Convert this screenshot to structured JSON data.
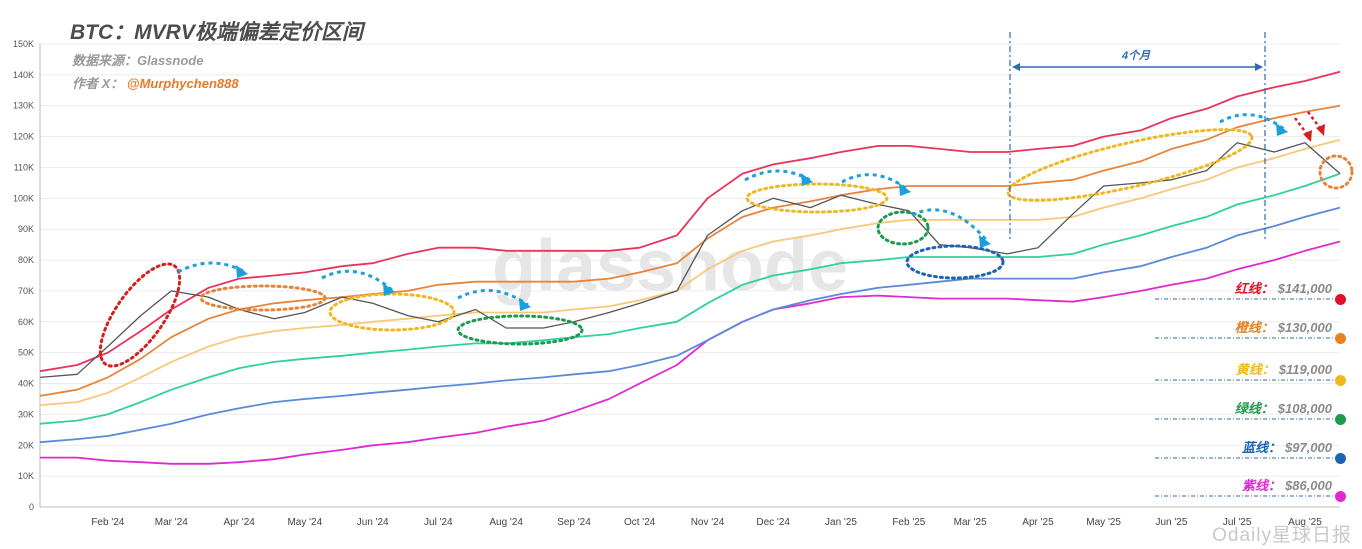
{
  "header": {
    "title": "BTC：MVRV极端偏差定价区间",
    "source": "数据来源：Glassnode",
    "author_label": "作者 X：",
    "author_handle": "@Murphychen888"
  },
  "watermark": "glassnode",
  "corner_watermark": "Odaily星球日报",
  "annotation_span": "4个月",
  "levels": [
    {
      "name": "红线：",
      "value": "$141,000",
      "color": "#e0102a"
    },
    {
      "name": "橙线：",
      "value": "$130,000",
      "color": "#e8801e"
    },
    {
      "name": "黄线：",
      "value": "$119,000",
      "color": "#f0b820"
    },
    {
      "name": "绿线：",
      "value": "$108,000",
      "color": "#1e9a4e"
    },
    {
      "name": "蓝线：",
      "value": "$97,000",
      "color": "#1b63b4"
    },
    {
      "name": "紫线：",
      "value": "$86,000",
      "color": "#e02ad0"
    }
  ],
  "chart_data": {
    "type": "line",
    "title": "BTC：MVRV极端偏差定价区间",
    "x": [
      "2024-01-15",
      "2024-02-01",
      "2024-02-15",
      "2024-03-01",
      "2024-03-15",
      "2024-04-01",
      "2024-04-15",
      "2024-05-01",
      "2024-05-15",
      "2024-06-01",
      "2024-06-15",
      "2024-07-01",
      "2024-07-15",
      "2024-08-01",
      "2024-08-15",
      "2024-09-01",
      "2024-09-15",
      "2024-10-01",
      "2024-10-15",
      "2024-11-01",
      "2024-11-15",
      "2024-12-01",
      "2024-12-15",
      "2025-01-01",
      "2025-01-15",
      "2025-02-01",
      "2025-02-15",
      "2025-03-01",
      "2025-03-15",
      "2025-04-01",
      "2025-04-15",
      "2025-05-01",
      "2025-05-15",
      "2025-06-01",
      "2025-06-15",
      "2025-07-01",
      "2025-07-15",
      "2025-08-01",
      "2025-08-15",
      "2025-08-31"
    ],
    "x_tick_labels": [
      "Feb '24",
      "Mar '24",
      "Apr '24",
      "May '24",
      "Jun '24",
      "Jul '24",
      "Aug '24",
      "Sep '24",
      "Oct '24",
      "Nov '24",
      "Dec '24",
      "Jan '25",
      "Feb '25",
      "Mar '25",
      "Apr '25",
      "May '25",
      "Jun '25",
      "Jul '25",
      "Aug '25"
    ],
    "y_ticks": [
      "0",
      "10K",
      "20K",
      "30K",
      "40K",
      "50K",
      "60K",
      "70K",
      "80K",
      "90K",
      "100K",
      "110K",
      "120K",
      "130K",
      "140K",
      "150K"
    ],
    "ylim": [
      0,
      150000
    ],
    "grid": "horizontal",
    "series": [
      {
        "color": "#555555",
        "values": [
          42000,
          43000,
          52000,
          62000,
          70000,
          68000,
          64000,
          61000,
          63000,
          68000,
          66000,
          62000,
          60000,
          64000,
          58000,
          58000,
          60000,
          63000,
          66000,
          70000,
          88000,
          96000,
          100000,
          97000,
          101000,
          98000,
          96000,
          85000,
          84000,
          82000,
          84000,
          95000,
          104000,
          105000,
          106000,
          109000,
          118000,
          115000,
          118000,
          108000
        ]
      },
      {
        "color": "#e8345a",
        "values": [
          44000,
          46000,
          50000,
          57000,
          64000,
          71000,
          74000,
          75000,
          76000,
          78000,
          79000,
          82000,
          84000,
          84000,
          83000,
          83000,
          83000,
          83000,
          84000,
          88000,
          100000,
          108000,
          111000,
          113000,
          115000,
          117000,
          117000,
          116000,
          115000,
          115000,
          116000,
          117000,
          120000,
          122000,
          126000,
          129000,
          133000,
          136000,
          138000,
          141000
        ]
      },
      {
        "color": "#e8843a",
        "values": [
          36000,
          38000,
          42000,
          48000,
          55000,
          61000,
          64000,
          66000,
          67000,
          68000,
          69000,
          70000,
          72000,
          73000,
          73000,
          73000,
          73000,
          74000,
          76000,
          79000,
          87000,
          94000,
          97000,
          99000,
          101000,
          103000,
          104000,
          104000,
          104000,
          104000,
          105000,
          106000,
          109000,
          112000,
          116000,
          119000,
          123000,
          126000,
          128000,
          130000
        ]
      },
      {
        "color": "#f8c878",
        "values": [
          33000,
          34000,
          37000,
          42000,
          47000,
          52000,
          55000,
          57000,
          58000,
          59000,
          60000,
          61000,
          62000,
          63000,
          63000,
          63000,
          64000,
          65000,
          67000,
          70000,
          77000,
          83000,
          86000,
          88000,
          90000,
          92000,
          93000,
          93000,
          93000,
          93000,
          93000,
          94000,
          97000,
          100000,
          103000,
          106000,
          110000,
          113000,
          116000,
          119000
        ]
      },
      {
        "color": "#30d0a0",
        "values": [
          27000,
          28000,
          30000,
          34000,
          38000,
          42000,
          45000,
          47000,
          48000,
          49000,
          50000,
          51000,
          52000,
          53000,
          53000,
          54000,
          55000,
          56000,
          58000,
          60000,
          66000,
          72000,
          75000,
          77000,
          79000,
          80000,
          81000,
          81000,
          81000,
          81000,
          81000,
          82000,
          85000,
          88000,
          91000,
          94000,
          98000,
          101000,
          104000,
          108000
        ]
      },
      {
        "color": "#5a8ad8",
        "values": [
          21000,
          22000,
          23000,
          25000,
          27000,
          30000,
          32000,
          34000,
          35000,
          36000,
          37000,
          38000,
          39000,
          40000,
          41000,
          42000,
          43000,
          44000,
          46000,
          49000,
          54000,
          60000,
          64000,
          67000,
          69000,
          71000,
          72000,
          73000,
          74000,
          74000,
          74000,
          74000,
          76000,
          78000,
          81000,
          84000,
          88000,
          91000,
          94000,
          97000
        ]
      },
      {
        "color": "#e02ad0",
        "values": [
          16000,
          16000,
          15000,
          14500,
          14000,
          14000,
          14500,
          15500,
          17000,
          18500,
          20000,
          21000,
          22500,
          24000,
          26000,
          28000,
          31000,
          35000,
          40000,
          46000,
          54000,
          60000,
          64000,
          66000,
          68000,
          68500,
          68000,
          67500,
          67500,
          67500,
          67000,
          66500,
          68000,
          70000,
          72000,
          74000,
          77000,
          80000,
          83000,
          86000
        ]
      }
    ]
  }
}
